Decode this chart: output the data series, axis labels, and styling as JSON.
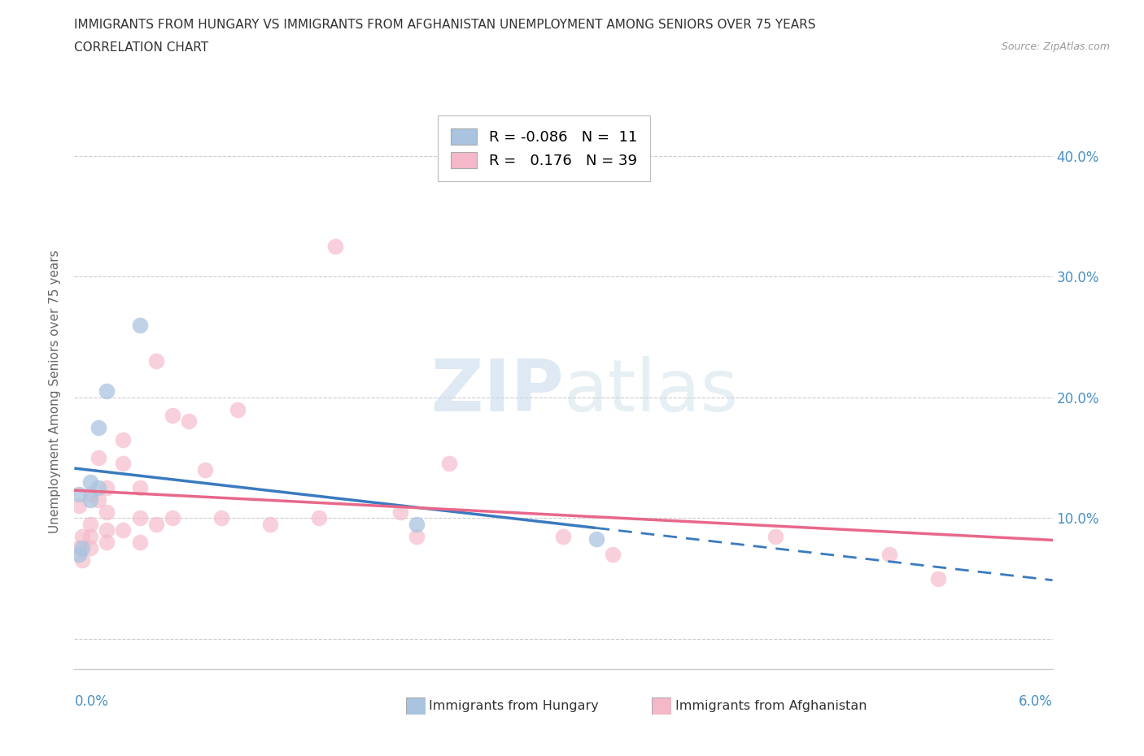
{
  "title_line1": "IMMIGRANTS FROM HUNGARY VS IMMIGRANTS FROM AFGHANISTAN UNEMPLOYMENT AMONG SENIORS OVER 75 YEARS",
  "title_line2": "CORRELATION CHART",
  "source": "Source: ZipAtlas.com",
  "ylabel": "Unemployment Among Seniors over 75 years",
  "yticks": [
    0.0,
    0.1,
    0.2,
    0.3,
    0.4
  ],
  "ytick_labels": [
    "",
    "10.0%",
    "20.0%",
    "30.0%",
    "40.0%"
  ],
  "xlim": [
    0.0,
    0.06
  ],
  "ylim": [
    -0.025,
    0.435
  ],
  "watermark": "ZIPatlas",
  "legend_hungary_R": "-0.086",
  "legend_hungary_N": "11",
  "legend_afghanistan_R": "0.176",
  "legend_afghanistan_N": "39",
  "color_hungary": "#aac4e0",
  "color_afghanistan": "#f5b8c8",
  "color_hungary_line": "#3a7abf",
  "color_afghanistan_line": "#e8688a",
  "hungary_x": [
    0.0003,
    0.0003,
    0.0005,
    0.001,
    0.001,
    0.0015,
    0.0015,
    0.002,
    0.004,
    0.021,
    0.032
  ],
  "hungary_y": [
    0.12,
    0.07,
    0.075,
    0.13,
    0.115,
    0.175,
    0.125,
    0.205,
    0.26,
    0.095,
    0.083
  ],
  "afghanistan_x": [
    0.0003,
    0.0003,
    0.0005,
    0.0005,
    0.001,
    0.001,
    0.001,
    0.001,
    0.0015,
    0.0015,
    0.002,
    0.002,
    0.002,
    0.002,
    0.003,
    0.003,
    0.003,
    0.004,
    0.004,
    0.004,
    0.005,
    0.005,
    0.006,
    0.006,
    0.007,
    0.008,
    0.009,
    0.01,
    0.012,
    0.015,
    0.016,
    0.02,
    0.021,
    0.023,
    0.03,
    0.033,
    0.043,
    0.05,
    0.053
  ],
  "afghanistan_y": [
    0.11,
    0.075,
    0.085,
    0.065,
    0.12,
    0.095,
    0.085,
    0.075,
    0.15,
    0.115,
    0.125,
    0.105,
    0.09,
    0.08,
    0.165,
    0.145,
    0.09,
    0.125,
    0.1,
    0.08,
    0.23,
    0.095,
    0.185,
    0.1,
    0.18,
    0.14,
    0.1,
    0.19,
    0.095,
    0.1,
    0.325,
    0.105,
    0.085,
    0.145,
    0.085,
    0.07,
    0.085,
    0.07,
    0.05
  ]
}
